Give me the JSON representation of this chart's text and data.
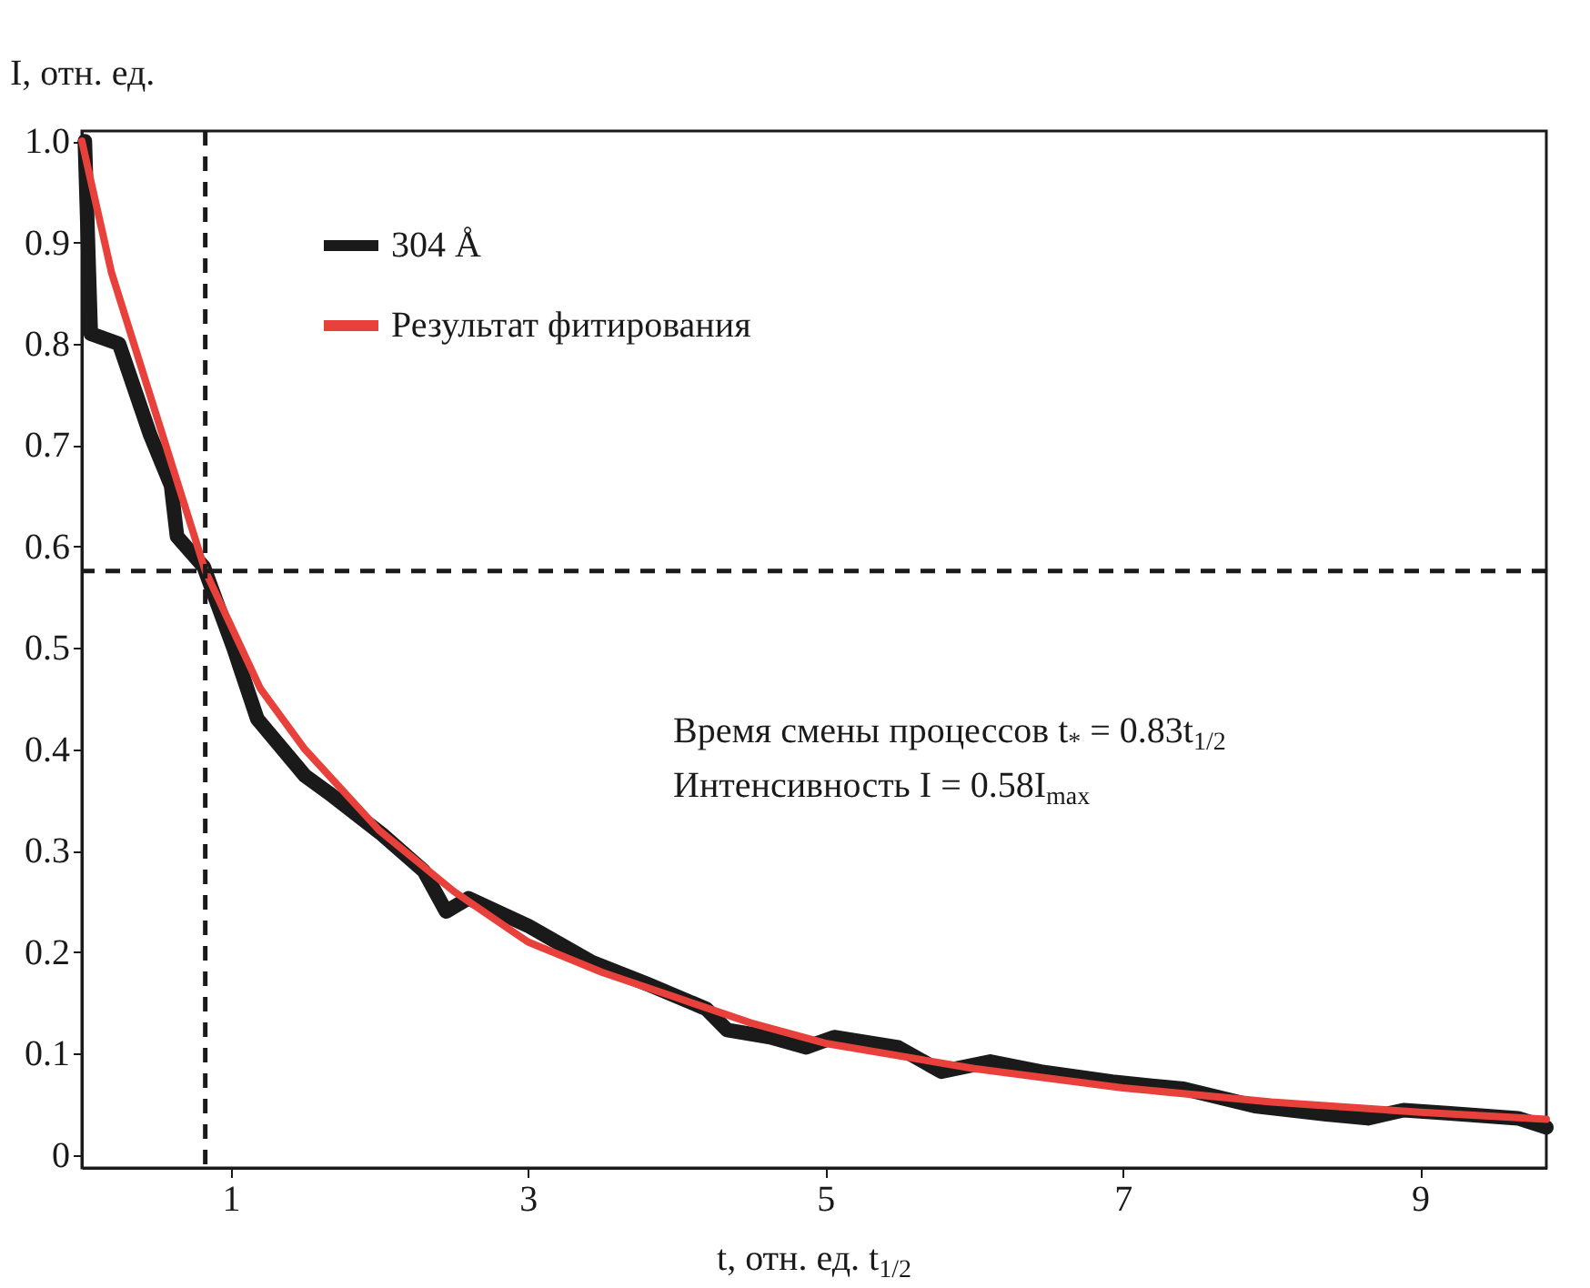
{
  "chart_data": {
    "type": "line",
    "ylabel": "I, отн. ед.",
    "xlabel": "t, отн. ед. t$_{1/2}$",
    "xlim": [
      0,
      9.85
    ],
    "xticks": [
      1,
      3,
      5,
      7,
      9
    ],
    "ylim": [
      -0.013,
      1.01
    ],
    "yticks": [
      0,
      0.1,
      0.2,
      0.3,
      0.4,
      0.5,
      0.6,
      0.7,
      0.8,
      0.9,
      {
        "value": 1,
        "label": "1.0"
      }
    ],
    "grid": false,
    "legend": "top left",
    "line_style": "solid",
    "marker": "none",
    "series": [
      {
        "name": "304 Å",
        "color": "#1a1a1a",
        "x": [
          0.02,
          0.06,
          0.25,
          0.46,
          0.6,
          0.64,
          0.82,
          1.02,
          1.18,
          1.5,
          1.66,
          2.02,
          2.3,
          2.45,
          2.6,
          3.0,
          3.43,
          3.81,
          4.2,
          4.34,
          4.63,
          4.87,
          5.06,
          5.49,
          5.78,
          6.11,
          6.45,
          6.93,
          7.41,
          7.89,
          8.37,
          8.65,
          8.89,
          9.18,
          9.66,
          9.85
        ],
        "values": [
          1.0,
          0.81,
          0.8,
          0.71,
          0.66,
          0.61,
          0.58,
          0.5,
          0.43,
          0.374,
          0.357,
          0.316,
          0.28,
          0.24,
          0.253,
          0.226,
          0.19,
          0.168,
          0.144,
          0.123,
          0.116,
          0.106,
          0.116,
          0.106,
          0.082,
          0.092,
          0.082,
          0.072,
          0.065,
          0.048,
          0.04,
          0.036,
          0.044,
          0.041,
          0.036,
          0.027
        ]
      },
      {
        "name": "Результат фитирования",
        "color": "#e8413c",
        "x": [
          0,
          0.2,
          0.5,
          0.83,
          1.2,
          1.5,
          2,
          2.5,
          3,
          3.5,
          4,
          4.5,
          5,
          6,
          7,
          8,
          9,
          9.85
        ],
        "values": [
          1.0,
          0.87,
          0.73,
          0.576,
          0.46,
          0.4,
          0.32,
          0.26,
          0.21,
          0.18,
          0.155,
          0.13,
          0.11,
          0.085,
          0.066,
          0.052,
          0.042,
          0.035
        ]
      }
    ],
    "ref_lines": [
      {
        "axis": "x",
        "value": 0.83,
        "color": "#1a1a1a",
        "line_style": "dashed"
      },
      {
        "axis": "y",
        "value": 0.576,
        "color": "#1a1a1a",
        "line_style": "dashed"
      }
    ],
    "annotations": [
      "Время смены процессов t$_{*}$ = 0.83t$_{1/2}$",
      "Интенсивность I = 0.58I$_{max}$"
    ]
  }
}
